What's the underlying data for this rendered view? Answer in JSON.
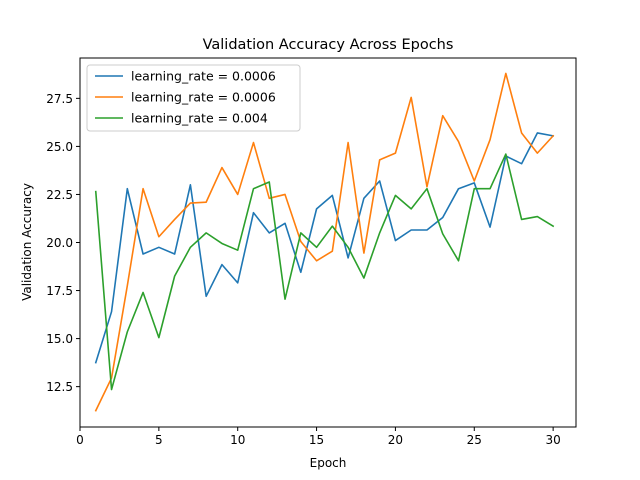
{
  "chart_data": {
    "type": "line",
    "title": "Validation Accuracy Across Epochs",
    "xlabel": "Epoch",
    "ylabel": "Validation Accuracy",
    "xlim": [
      0,
      31.45
    ],
    "ylim": [
      10.4,
      29.6
    ],
    "xticks": [
      0,
      5,
      10,
      15,
      20,
      25,
      30
    ],
    "yticks": [
      12.5,
      15.0,
      17.5,
      20.0,
      22.5,
      25.0,
      27.5
    ],
    "ytick_labels": [
      "12.5",
      "15.0",
      "17.5",
      "20.0",
      "22.5",
      "25.0",
      "27.5"
    ],
    "grid": false,
    "legend_position": "upper-left",
    "x": [
      1,
      2,
      3,
      4,
      5,
      6,
      7,
      8,
      9,
      10,
      11,
      12,
      13,
      14,
      15,
      16,
      17,
      18,
      19,
      20,
      21,
      22,
      23,
      24,
      25,
      26,
      27,
      28,
      29,
      30
    ],
    "series": [
      {
        "name": "learning_rate = 0.0006",
        "color": "#1f77b4",
        "values": [
          13.75,
          16.4,
          22.8,
          19.4,
          19.75,
          19.4,
          23.0,
          17.2,
          18.85,
          17.9,
          21.55,
          20.5,
          21.0,
          18.45,
          21.75,
          22.45,
          19.2,
          22.3,
          23.2,
          20.1,
          20.65,
          20.65,
          21.3,
          22.8,
          23.1,
          20.8,
          24.5,
          24.1,
          25.7,
          25.55
        ]
      },
      {
        "name": "learning_rate = 0.0006",
        "color": "#ff7f0e",
        "values": [
          11.25,
          12.95,
          17.75,
          22.8,
          20.3,
          21.2,
          22.05,
          22.1,
          23.9,
          22.5,
          25.2,
          22.3,
          22.5,
          20.05,
          19.05,
          19.55,
          25.2,
          19.45,
          24.3,
          24.65,
          27.55,
          22.9,
          26.6,
          25.25,
          23.2,
          25.35,
          28.8,
          25.7,
          24.65,
          25.55
        ]
      },
      {
        "name": "learning_rate = 0.004",
        "color": "#2ca02c",
        "values": [
          22.65,
          12.35,
          15.35,
          17.4,
          15.05,
          18.25,
          19.75,
          20.5,
          19.95,
          19.6,
          22.8,
          23.15,
          17.05,
          20.5,
          19.75,
          20.85,
          19.75,
          18.15,
          20.5,
          22.45,
          21.75,
          22.8,
          20.45,
          19.05,
          22.8,
          22.8,
          24.6,
          21.2,
          21.35,
          20.85
        ]
      }
    ]
  }
}
